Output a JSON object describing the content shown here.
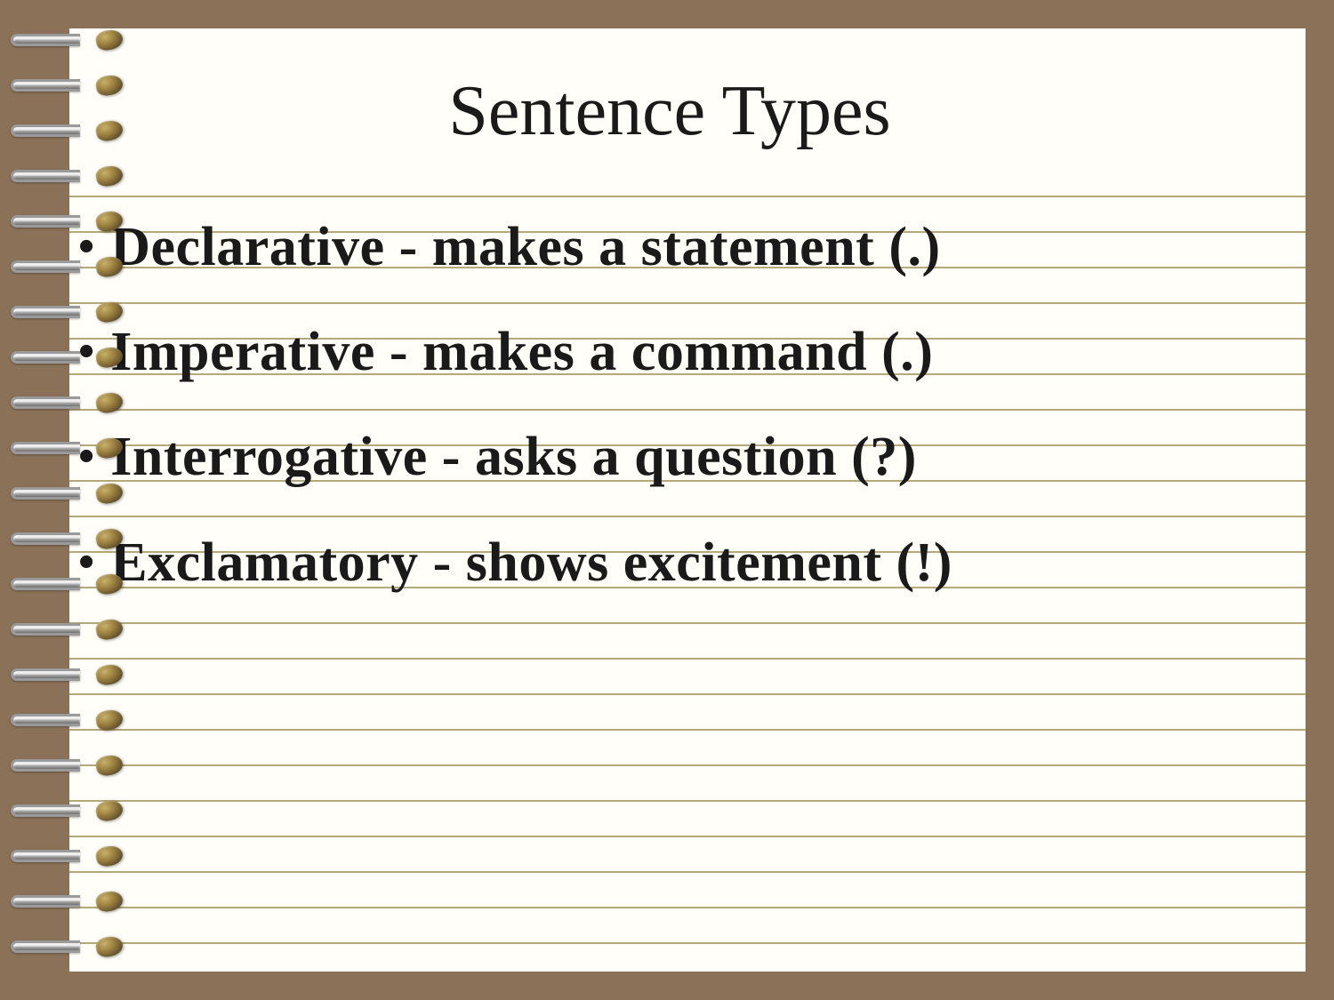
{
  "slide": {
    "title": "Sentence Types",
    "title_fontsize": 80,
    "title_color": "#1a1a1a",
    "background_color": "#8a7158",
    "paper_color": "#fffef8",
    "rule_color": "#b7a87a",
    "bullet_fontsize": 62,
    "bullet_color": "#1a1a1a",
    "bullets": [
      "Declarative - makes a statement (.)",
      "Imperative - makes a command (.)",
      "Interrogative - asks a question (?)",
      "Exclamatory - shows excitement (!)"
    ],
    "ruled_line_positions": [
      188,
      228,
      268,
      308,
      348,
      388,
      428,
      468,
      508,
      548,
      588,
      628,
      668,
      708,
      748,
      788,
      828,
      868,
      908,
      948,
      988,
      1028
    ],
    "spiral_ring_count": 21,
    "spiral_ring_spacing": 51
  }
}
